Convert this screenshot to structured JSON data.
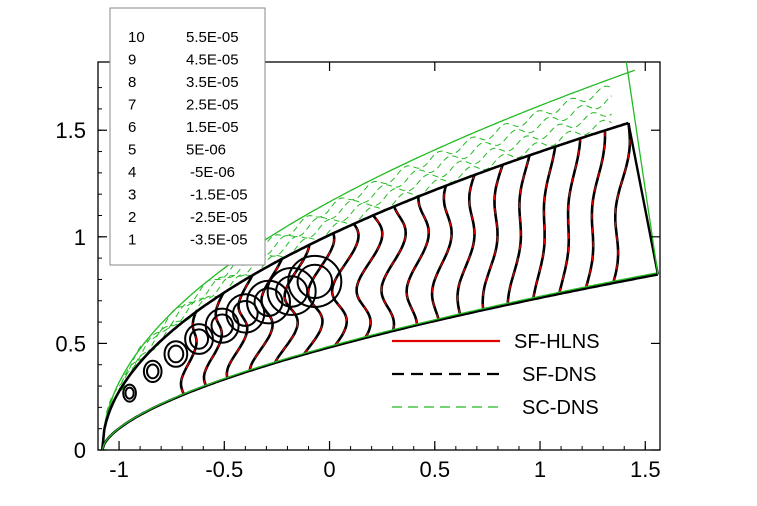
{
  "chart_data": {
    "type": "line",
    "title": "",
    "xlabel": "",
    "ylabel": "",
    "xlim": [
      -1.1,
      1.57
    ],
    "ylim": [
      0,
      1.82
    ],
    "x_ticks": [
      "-1",
      "-0.5",
      "0",
      "0.5",
      "1",
      "1.5"
    ],
    "y_ticks": [
      "0",
      "0.5",
      "1",
      "1.5"
    ],
    "x_tick_values": [
      -1,
      -0.5,
      0,
      0.5,
      1,
      1.5
    ],
    "y_tick_values": [
      0,
      0.5,
      1,
      1.5
    ],
    "contour_levels": [
      {
        "index": "10",
        "value": "5.5E-05"
      },
      {
        "index": "9",
        "value": "4.5E-05"
      },
      {
        "index": "8",
        "value": "3.5E-05"
      },
      {
        "index": "7",
        "value": "2.5E-05"
      },
      {
        "index": "6",
        "value": "1.5E-05"
      },
      {
        "index": "5",
        "value": "5E-06"
      },
      {
        "index": "4",
        "value": "-5E-06"
      },
      {
        "index": "3",
        "value": "-1.5E-05"
      },
      {
        "index": "2",
        "value": "-2.5E-05"
      },
      {
        "index": "1",
        "value": "-3.5E-05"
      }
    ],
    "legend_position": "bottom-right",
    "series": [
      {
        "name": "SF-HLNS",
        "color": "#e00000",
        "style": "solid"
      },
      {
        "name": "SF-DNS",
        "color": "#000000",
        "style": "dashed"
      },
      {
        "name": "SC-DNS",
        "color": "#22bb22",
        "style": "dashed"
      }
    ]
  }
}
